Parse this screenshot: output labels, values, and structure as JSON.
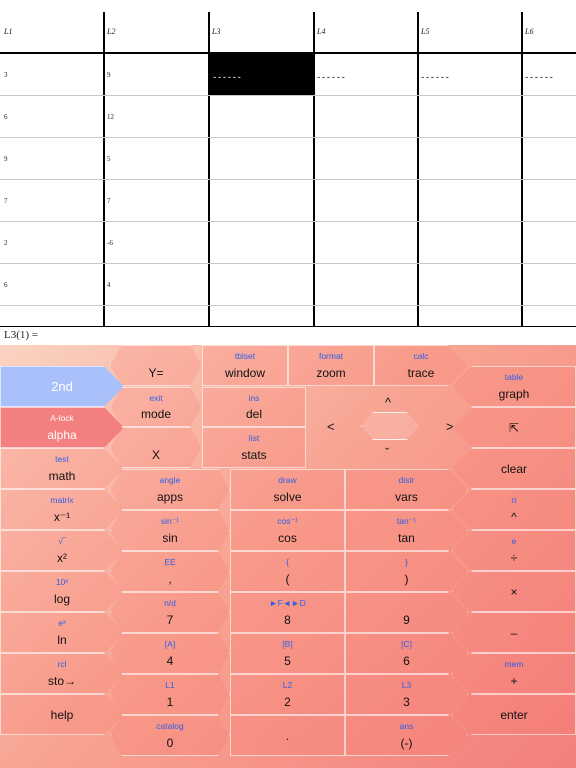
{
  "table": {
    "headers": [
      "L1",
      "L2",
      "L3",
      "L4",
      "L5",
      "L6"
    ],
    "rows": [
      [
        "3",
        "9",
        "------",
        "------",
        "------",
        "------"
      ],
      [
        "6",
        "12",
        "",
        "",
        "",
        ""
      ],
      [
        "9",
        "5",
        "",
        "",
        "",
        ""
      ],
      [
        "7",
        "7",
        "",
        "",
        "",
        ""
      ],
      [
        "2",
        "-6",
        "",
        "",
        "",
        ""
      ],
      [
        "6",
        "4",
        "",
        "",
        "",
        ""
      ]
    ],
    "entry_line": "L3(1) ="
  },
  "keys": {
    "y_eq": {
      "main": "Y="
    },
    "window": {
      "sec": "tblset",
      "main": "window"
    },
    "zoom": {
      "sec": "format",
      "main": "zoom"
    },
    "trace": {
      "sec": "calc",
      "main": "trace"
    },
    "second": {
      "main": "2nd"
    },
    "mode": {
      "sec": "exit",
      "main": "mode"
    },
    "del": {
      "sec": "ins",
      "main": "del"
    },
    "graph": {
      "sec": "table",
      "main": "graph"
    },
    "alpha": {
      "sec": "A-lock",
      "main": "alpha"
    },
    "x_var": {
      "main": "X"
    },
    "stats": {
      "sec": "list",
      "main": "stats"
    },
    "share": {
      "main": "⇱"
    },
    "math": {
      "sec": "test",
      "main": "math"
    },
    "clear": {
      "main": "clear"
    },
    "apps": {
      "sec": "angle",
      "main": "apps"
    },
    "solve": {
      "sec": "draw",
      "main": "solve"
    },
    "vars": {
      "sec": "distr",
      "main": "vars"
    },
    "x_inv": {
      "sec": "matrix",
      "main": "x⁻¹"
    },
    "power": {
      "sec": "π",
      "main": "^"
    },
    "sin": {
      "sec": "sin⁻¹",
      "main": "sin"
    },
    "cos": {
      "sec": "cos⁻¹",
      "main": "cos"
    },
    "tan": {
      "sec": "tan⁻¹",
      "main": "tan"
    },
    "x_sq": {
      "sec": "√‾",
      "main": "x²"
    },
    "divide": {
      "sec": "e",
      "main": "÷"
    },
    "comma": {
      "sec": "EE",
      "main": ","
    },
    "lparen": {
      "sec": "{",
      "main": "("
    },
    "rparen": {
      "sec": "}",
      "main": ")"
    },
    "log": {
      "sec": "10ˣ",
      "main": "log"
    },
    "multiply": {
      "main": "×"
    },
    "seven": {
      "sec": "n/d",
      "main": "7"
    },
    "eight": {
      "sec": "►F◄►D",
      "main": "8"
    },
    "nine": {
      "main": "9"
    },
    "ln": {
      "sec": "eˣ",
      "main": "ln"
    },
    "minus": {
      "main": "–"
    },
    "four": {
      "sec": "[A]",
      "main": "4"
    },
    "five": {
      "sec": "[B]",
      "main": "5"
    },
    "six": {
      "sec": "[C]",
      "main": "6"
    },
    "sto": {
      "sec": "rcl",
      "main": "sto→"
    },
    "plus": {
      "sec": "mem",
      "main": "+"
    },
    "one": {
      "sec": "L1",
      "main": "1"
    },
    "two": {
      "sec": "L2",
      "main": "2"
    },
    "three": {
      "sec": "L3",
      "main": "3"
    },
    "help": {
      "main": "help"
    },
    "enter": {
      "main": "enter"
    },
    "zero": {
      "sec": "catalog",
      "main": "0"
    },
    "decimal": {
      "main": "."
    },
    "negate": {
      "sec": "ans",
      "main": "(-)"
    }
  },
  "dpad": {
    "up": "^",
    "down": "ˇ",
    "left": "<",
    "right": ">"
  },
  "colors": {
    "second_key": "#a9c0fb",
    "alpha_key": "#f47f80",
    "secondary_label": "#2f5fe8"
  }
}
